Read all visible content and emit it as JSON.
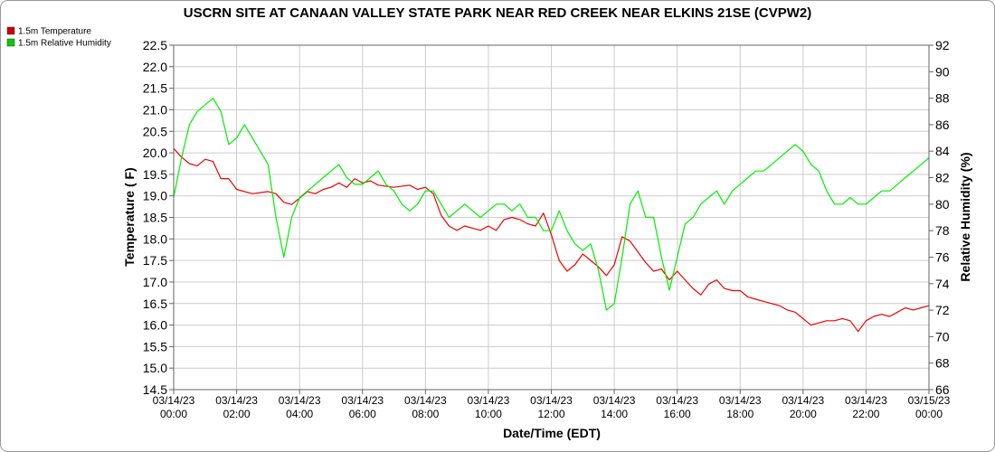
{
  "chart_data": {
    "type": "line",
    "title": "USCRN SITE AT CANAAN VALLEY STATE PARK NEAR RED CREEK NEAR ELKINS 21SE (CVPW2)",
    "xlabel": "Date/Time (EDT)",
    "ylabel_left": "Temperature ( F)",
    "ylabel_right": "Relative Humidity (%)",
    "ylim_left": [
      14.5,
      22.5
    ],
    "ylim_right": [
      66,
      92
    ],
    "y_ticks_left": [
      "14.5",
      "15.0",
      "15.5",
      "16.0",
      "16.5",
      "17.0",
      "17.5",
      "18.0",
      "18.5",
      "19.0",
      "19.5",
      "20.0",
      "20.5",
      "21.0",
      "21.5",
      "22.0",
      "22.5"
    ],
    "y_ticks_right": [
      "66",
      "68",
      "70",
      "72",
      "74",
      "76",
      "78",
      "80",
      "82",
      "84",
      "86",
      "88",
      "90",
      "92"
    ],
    "x_ticks": [
      {
        "date": "03/14/23",
        "time": "00:00",
        "h": 0
      },
      {
        "date": "03/14/23",
        "time": "02:00",
        "h": 2
      },
      {
        "date": "03/14/23",
        "time": "04:00",
        "h": 4
      },
      {
        "date": "03/14/23",
        "time": "06:00",
        "h": 6
      },
      {
        "date": "03/14/23",
        "time": "08:00",
        "h": 8
      },
      {
        "date": "03/14/23",
        "time": "10:00",
        "h": 10
      },
      {
        "date": "03/14/23",
        "time": "12:00",
        "h": 12
      },
      {
        "date": "03/14/23",
        "time": "14:00",
        "h": 14
      },
      {
        "date": "03/14/23",
        "time": "16:00",
        "h": 16
      },
      {
        "date": "03/14/23",
        "time": "18:00",
        "h": 18
      },
      {
        "date": "03/14/23",
        "time": "20:00",
        "h": 20
      },
      {
        "date": "03/14/23",
        "time": "22:00",
        "h": 22
      },
      {
        "date": "03/15/23",
        "time": "00:00",
        "h": 24
      }
    ],
    "grid": true,
    "legend_position": "top-left",
    "series": [
      {
        "name": "1.5m Temperature",
        "color": "#ee0000",
        "axis": "left",
        "points": [
          [
            0,
            20.1
          ],
          [
            0.25,
            19.9
          ],
          [
            0.5,
            19.75
          ],
          [
            0.75,
            19.7
          ],
          [
            1.0,
            19.85
          ],
          [
            1.25,
            19.8
          ],
          [
            1.5,
            19.4
          ],
          [
            1.75,
            19.4
          ],
          [
            2.0,
            19.15
          ],
          [
            2.5,
            19.05
          ],
          [
            3.0,
            19.1
          ],
          [
            3.25,
            19.05
          ],
          [
            3.5,
            18.85
          ],
          [
            3.75,
            18.8
          ],
          [
            4.0,
            18.95
          ],
          [
            4.25,
            19.1
          ],
          [
            4.5,
            19.05
          ],
          [
            4.75,
            19.15
          ],
          [
            5.0,
            19.2
          ],
          [
            5.25,
            19.3
          ],
          [
            5.5,
            19.2
          ],
          [
            5.75,
            19.4
          ],
          [
            6.0,
            19.3
          ],
          [
            6.25,
            19.35
          ],
          [
            6.5,
            19.25
          ],
          [
            7.0,
            19.2
          ],
          [
            7.5,
            19.25
          ],
          [
            7.75,
            19.15
          ],
          [
            8.0,
            19.2
          ],
          [
            8.25,
            19.05
          ],
          [
            8.5,
            18.55
          ],
          [
            8.75,
            18.3
          ],
          [
            9.0,
            18.2
          ],
          [
            9.25,
            18.3
          ],
          [
            9.5,
            18.25
          ],
          [
            9.75,
            18.2
          ],
          [
            10.0,
            18.3
          ],
          [
            10.25,
            18.2
          ],
          [
            10.5,
            18.45
          ],
          [
            10.75,
            18.5
          ],
          [
            11.0,
            18.45
          ],
          [
            11.25,
            18.35
          ],
          [
            11.5,
            18.3
          ],
          [
            11.75,
            18.6
          ],
          [
            12.0,
            18.1
          ],
          [
            12.25,
            17.5
          ],
          [
            12.5,
            17.25
          ],
          [
            12.75,
            17.4
          ],
          [
            13.0,
            17.65
          ],
          [
            13.25,
            17.5
          ],
          [
            13.5,
            17.35
          ],
          [
            13.75,
            17.15
          ],
          [
            14.0,
            17.4
          ],
          [
            14.25,
            18.05
          ],
          [
            14.5,
            17.95
          ],
          [
            14.75,
            17.7
          ],
          [
            15.0,
            17.45
          ],
          [
            15.25,
            17.25
          ],
          [
            15.5,
            17.3
          ],
          [
            15.75,
            17.05
          ],
          [
            16.0,
            17.25
          ],
          [
            16.25,
            17.05
          ],
          [
            16.5,
            16.85
          ],
          [
            16.75,
            16.7
          ],
          [
            17.0,
            16.95
          ],
          [
            17.25,
            17.05
          ],
          [
            17.5,
            16.85
          ],
          [
            17.75,
            16.8
          ],
          [
            18.0,
            16.8
          ],
          [
            18.25,
            16.65
          ],
          [
            18.5,
            16.6
          ],
          [
            18.75,
            16.55
          ],
          [
            19.0,
            16.5
          ],
          [
            19.25,
            16.45
          ],
          [
            19.5,
            16.35
          ],
          [
            19.75,
            16.3
          ],
          [
            20.0,
            16.15
          ],
          [
            20.25,
            16.0
          ],
          [
            20.5,
            16.05
          ],
          [
            20.75,
            16.1
          ],
          [
            21.0,
            16.1
          ],
          [
            21.25,
            16.15
          ],
          [
            21.5,
            16.1
          ],
          [
            21.75,
            15.85
          ],
          [
            22.0,
            16.1
          ],
          [
            22.25,
            16.2
          ],
          [
            22.5,
            16.25
          ],
          [
            22.75,
            16.2
          ],
          [
            23.0,
            16.3
          ],
          [
            23.25,
            16.4
          ],
          [
            23.5,
            16.35
          ],
          [
            23.75,
            16.4
          ],
          [
            24.0,
            16.45
          ]
        ]
      },
      {
        "name": "1.5m Relative Humidity",
        "color": "#00ee00",
        "axis": "right",
        "points": [
          [
            0,
            80.5
          ],
          [
            0.25,
            83.5
          ],
          [
            0.5,
            86
          ],
          [
            0.75,
            87
          ],
          [
            1.0,
            87.5
          ],
          [
            1.25,
            88
          ],
          [
            1.5,
            87
          ],
          [
            1.75,
            84.5
          ],
          [
            2.0,
            85
          ],
          [
            2.25,
            86
          ],
          [
            2.5,
            85
          ],
          [
            2.75,
            84
          ],
          [
            3.0,
            83
          ],
          [
            3.25,
            79
          ],
          [
            3.5,
            76
          ],
          [
            3.75,
            79
          ],
          [
            4.0,
            80.5
          ],
          [
            4.25,
            81
          ],
          [
            4.5,
            81.5
          ],
          [
            4.75,
            82
          ],
          [
            5.0,
            82.5
          ],
          [
            5.25,
            83
          ],
          [
            5.5,
            82
          ],
          [
            5.75,
            81.5
          ],
          [
            6.0,
            81.5
          ],
          [
            6.25,
            82
          ],
          [
            6.5,
            82.5
          ],
          [
            6.75,
            81.5
          ],
          [
            7.0,
            81
          ],
          [
            7.25,
            80
          ],
          [
            7.5,
            79.5
          ],
          [
            7.75,
            80
          ],
          [
            8.0,
            81
          ],
          [
            8.25,
            81
          ],
          [
            8.5,
            80
          ],
          [
            8.75,
            79
          ],
          [
            9.0,
            79.5
          ],
          [
            9.25,
            80
          ],
          [
            9.5,
            79.5
          ],
          [
            9.75,
            79
          ],
          [
            10.0,
            79.5
          ],
          [
            10.25,
            80
          ],
          [
            10.5,
            80
          ],
          [
            10.75,
            79.5
          ],
          [
            11.0,
            80
          ],
          [
            11.25,
            79
          ],
          [
            11.5,
            79
          ],
          [
            11.75,
            78
          ],
          [
            12.0,
            78
          ],
          [
            12.25,
            79.5
          ],
          [
            12.5,
            78
          ],
          [
            12.75,
            77
          ],
          [
            13.0,
            76.5
          ],
          [
            13.25,
            77
          ],
          [
            13.5,
            75
          ],
          [
            13.75,
            72
          ],
          [
            14.0,
            72.5
          ],
          [
            14.25,
            76
          ],
          [
            14.5,
            80
          ],
          [
            14.75,
            81
          ],
          [
            15.0,
            79
          ],
          [
            15.25,
            79
          ],
          [
            15.5,
            76
          ],
          [
            15.75,
            73.5
          ],
          [
            16.0,
            76
          ],
          [
            16.25,
            78.5
          ],
          [
            16.5,
            79
          ],
          [
            16.75,
            80
          ],
          [
            17.0,
            80.5
          ],
          [
            17.25,
            81
          ],
          [
            17.5,
            80
          ],
          [
            17.75,
            81
          ],
          [
            18.0,
            81.5
          ],
          [
            18.25,
            82
          ],
          [
            18.5,
            82.5
          ],
          [
            18.75,
            82.5
          ],
          [
            19.0,
            83
          ],
          [
            19.25,
            83.5
          ],
          [
            19.5,
            84
          ],
          [
            19.75,
            84.5
          ],
          [
            20.0,
            84
          ],
          [
            20.25,
            83
          ],
          [
            20.5,
            82.5
          ],
          [
            20.75,
            81
          ],
          [
            21.0,
            80
          ],
          [
            21.25,
            80
          ],
          [
            21.5,
            80.5
          ],
          [
            21.75,
            80
          ],
          [
            22.0,
            80
          ],
          [
            22.25,
            80.5
          ],
          [
            22.5,
            81
          ],
          [
            22.75,
            81
          ],
          [
            23.0,
            81.5
          ],
          [
            23.25,
            82
          ],
          [
            23.5,
            82.5
          ],
          [
            23.75,
            83
          ],
          [
            24.0,
            83.5
          ]
        ]
      }
    ]
  }
}
